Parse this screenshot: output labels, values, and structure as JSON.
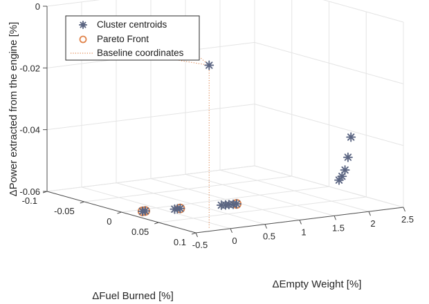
{
  "chart_data": {
    "type": "scatter",
    "dimensions": 3,
    "xlabel": "ΔEmpty Weight [%]",
    "ylabel": "ΔFuel Burned [%]",
    "zlabel": "ΔPower extracted from the engine [%]",
    "xlim": [
      -0.5,
      2.5
    ],
    "ylim": [
      -0.1,
      0.1
    ],
    "zlim": [
      -0.06,
      0
    ],
    "x_ticks": [
      "-0.5",
      "0",
      "0.5",
      "1",
      "1.5",
      "2",
      "2.5"
    ],
    "y_ticks": [
      "-0.1",
      "-0.05",
      "0",
      "0.05",
      "0.1"
    ],
    "z_ticks": [
      "-0.06",
      "-0.04",
      "-0.02",
      "0"
    ],
    "grid": true,
    "legend_position": "top-left",
    "colors": {
      "centroid": "#5b6582",
      "pareto": "#e0834a",
      "baseline": "#e0834a"
    },
    "series": [
      {
        "name": "Cluster centroids",
        "marker": "asterisk",
        "points": [
          {
            "x": -0.2,
            "y": 0.09,
            "z": -0.0072
          },
          {
            "x": 2.0,
            "y": 0.076,
            "z": -0.0375
          },
          {
            "x": 2.0,
            "y": 0.072,
            "z": -0.0443
          },
          {
            "x": 2.0,
            "y": 0.068,
            "z": -0.0487
          },
          {
            "x": 2.0,
            "y": 0.064,
            "z": -0.051
          },
          {
            "x": 2.0,
            "y": 0.06,
            "z": -0.0525
          },
          {
            "x": 0.95,
            "y": 0.02,
            "z": -0.06
          },
          {
            "x": 0.9,
            "y": 0.02,
            "z": -0.06
          },
          {
            "x": 0.85,
            "y": 0.019,
            "z": -0.06
          },
          {
            "x": 0.8,
            "y": 0.019,
            "z": -0.06
          },
          {
            "x": 0.75,
            "y": 0.018,
            "z": -0.06
          },
          {
            "x": 0.22,
            "y": 0.012,
            "z": -0.06
          },
          {
            "x": 0.18,
            "y": 0.012,
            "z": -0.06
          },
          {
            "x": 0.14,
            "y": 0.012,
            "z": -0.06
          },
          {
            "x": -0.22,
            "y": 0.006,
            "z": -0.06
          },
          {
            "x": -0.26,
            "y": 0.006,
            "z": -0.06
          }
        ]
      },
      {
        "name": "Pareto Front",
        "marker": "circle",
        "points": [
          {
            "x": 0.95,
            "y": 0.02,
            "z": -0.06
          },
          {
            "x": 0.22,
            "y": 0.012,
            "z": -0.06
          },
          {
            "x": -0.22,
            "y": 0.006,
            "z": -0.06
          },
          {
            "x": -0.26,
            "y": 0.006,
            "z": -0.06
          }
        ]
      },
      {
        "name": "Baseline coordinates",
        "marker": "dotted-line",
        "origin": {
          "x": -0.2,
          "y": 0.09,
          "z": -0.0072
        }
      }
    ]
  }
}
